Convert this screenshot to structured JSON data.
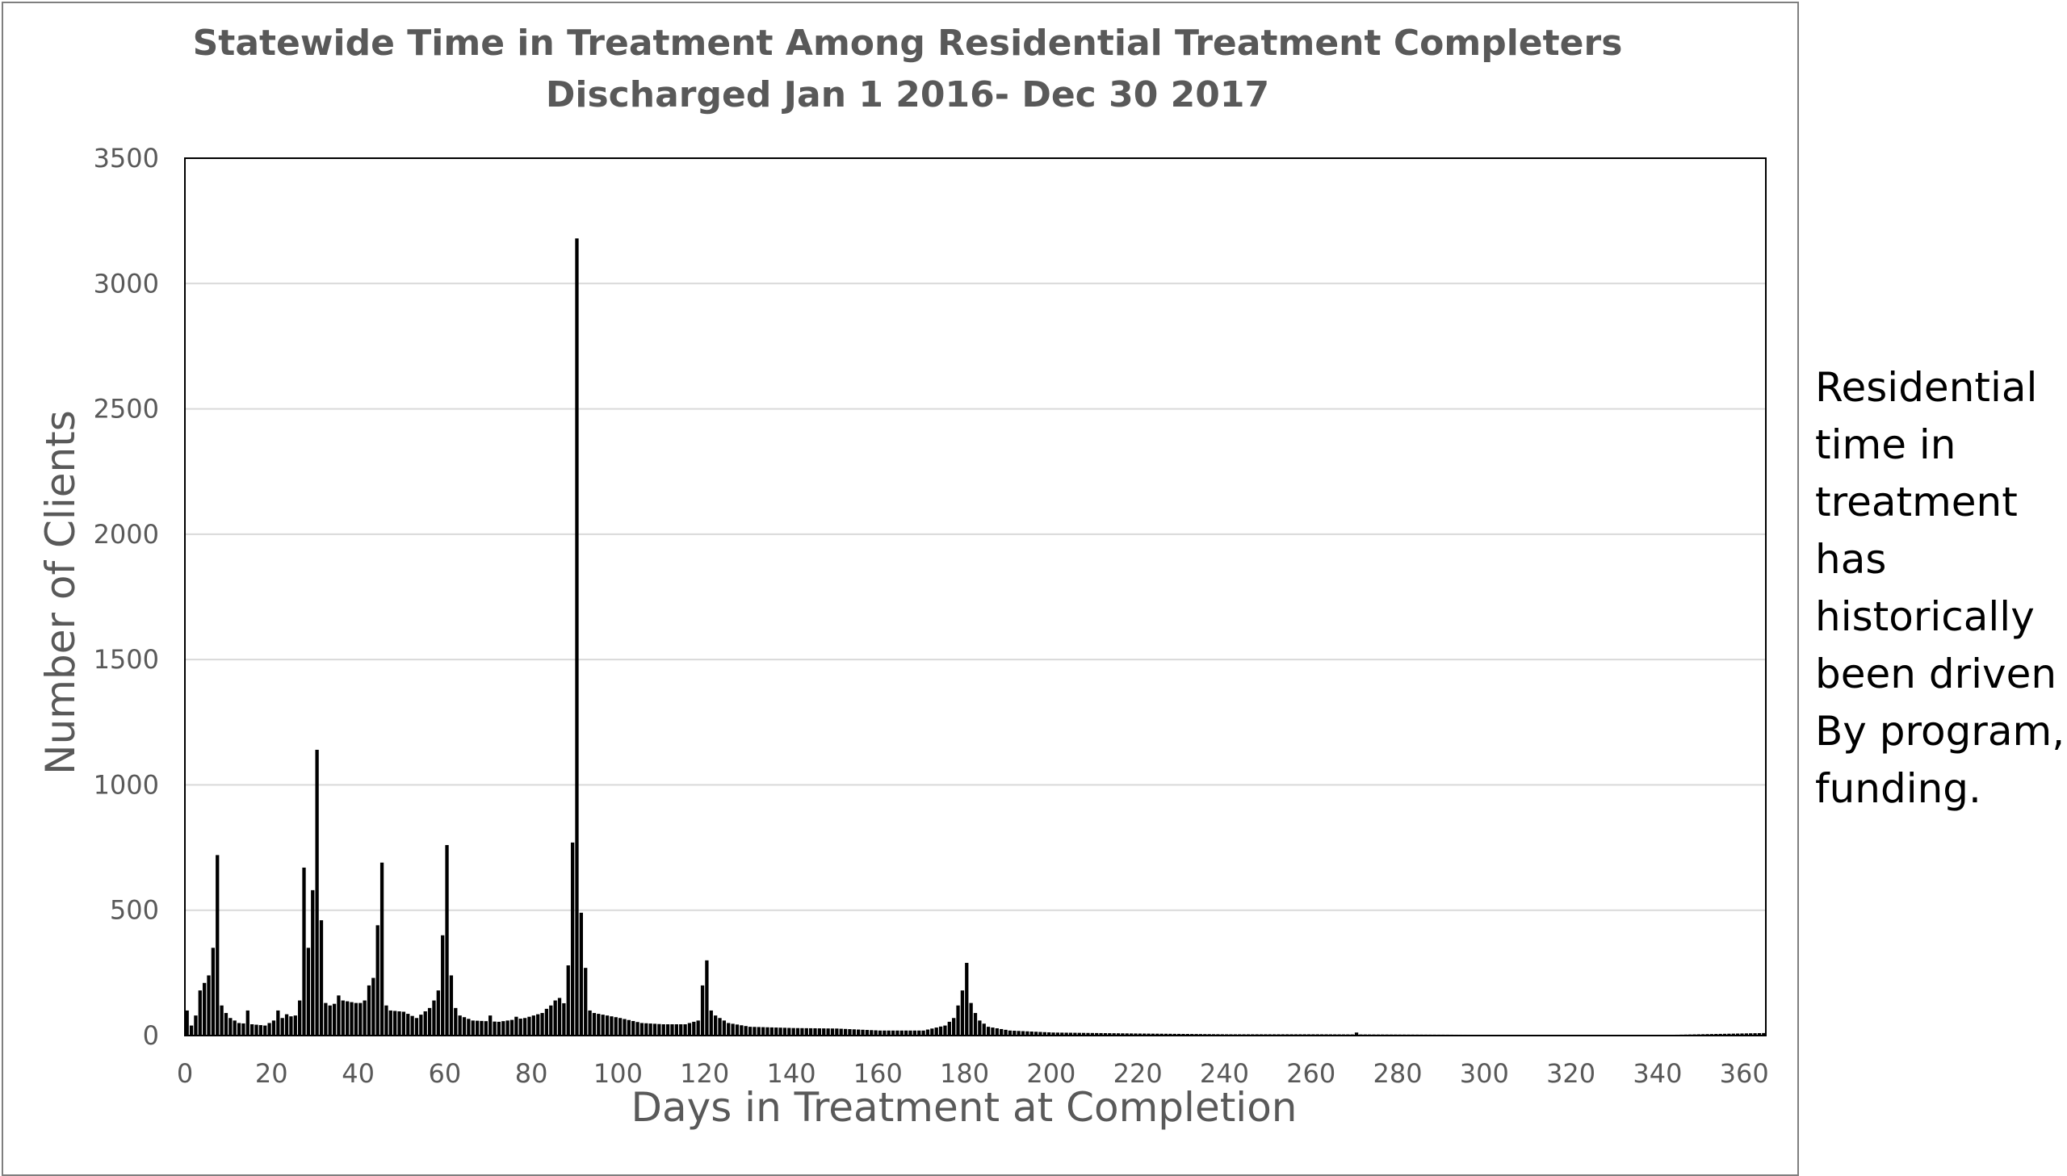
{
  "chart_data": {
    "type": "bar",
    "title": "Statewide Time in Treatment Among Residential Treatment Completers",
    "subtitle": "Discharged Jan 1 2016- Dec 30 2017",
    "xlabel": "Days in Treatment at Completion",
    "ylabel": "Number of Clients",
    "xlim": [
      0,
      365
    ],
    "ylim": [
      0,
      3500
    ],
    "x_ticks": [
      0,
      20,
      40,
      60,
      80,
      100,
      120,
      140,
      160,
      180,
      200,
      220,
      240,
      260,
      280,
      300,
      320,
      340,
      360
    ],
    "y_ticks": [
      0,
      500,
      1000,
      1500,
      2000,
      2500,
      3000,
      3500
    ],
    "grid": "horizontal",
    "legend": "none",
    "bar_color": "#000000",
    "grid_color": "#d9d9d9",
    "axis_color": "#000000",
    "text_color": "#595959",
    "spikes": [
      {
        "x": 0,
        "value": 100
      },
      {
        "x": 3,
        "value": 180
      },
      {
        "x": 4,
        "value": 210
      },
      {
        "x": 5,
        "value": 240
      },
      {
        "x": 6,
        "value": 350
      },
      {
        "x": 7,
        "value": 720
      },
      {
        "x": 8,
        "value": 120
      },
      {
        "x": 14,
        "value": 100
      },
      {
        "x": 21,
        "value": 100
      },
      {
        "x": 23,
        "value": 85
      },
      {
        "x": 26,
        "value": 140
      },
      {
        "x": 27,
        "value": 670
      },
      {
        "x": 28,
        "value": 350
      },
      {
        "x": 29,
        "value": 580
      },
      {
        "x": 30,
        "value": 1140
      },
      {
        "x": 31,
        "value": 460
      },
      {
        "x": 32,
        "value": 130
      },
      {
        "x": 35,
        "value": 160
      },
      {
        "x": 40,
        "value": 130
      },
      {
        "x": 42,
        "value": 200
      },
      {
        "x": 43,
        "value": 230
      },
      {
        "x": 44,
        "value": 440
      },
      {
        "x": 45,
        "value": 690
      },
      {
        "x": 46,
        "value": 120
      },
      {
        "x": 57,
        "value": 140
      },
      {
        "x": 58,
        "value": 180
      },
      {
        "x": 59,
        "value": 400
      },
      {
        "x": 60,
        "value": 760
      },
      {
        "x": 61,
        "value": 240
      },
      {
        "x": 62,
        "value": 110
      },
      {
        "x": 70,
        "value": 80
      },
      {
        "x": 76,
        "value": 75
      },
      {
        "x": 84,
        "value": 120
      },
      {
        "x": 86,
        "value": 150
      },
      {
        "x": 88,
        "value": 280
      },
      {
        "x": 89,
        "value": 770
      },
      {
        "x": 90,
        "value": 3180
      },
      {
        "x": 91,
        "value": 490
      },
      {
        "x": 92,
        "value": 270
      },
      {
        "x": 93,
        "value": 100
      },
      {
        "x": 119,
        "value": 200
      },
      {
        "x": 120,
        "value": 300
      },
      {
        "x": 121,
        "value": 100
      },
      {
        "x": 178,
        "value": 120
      },
      {
        "x": 179,
        "value": 180
      },
      {
        "x": 180,
        "value": 290
      },
      {
        "x": 181,
        "value": 130
      },
      {
        "x": 182,
        "value": 90
      },
      {
        "x": 270,
        "value": 12
      }
    ],
    "baseline": [
      [
        0,
        100
      ],
      [
        1,
        40
      ],
      [
        2,
        80
      ],
      [
        9,
        90
      ],
      [
        10,
        70
      ],
      [
        12,
        50
      ],
      [
        15,
        45
      ],
      [
        18,
        40
      ],
      [
        20,
        60
      ],
      [
        22,
        70
      ],
      [
        25,
        80
      ],
      [
        33,
        120
      ],
      [
        36,
        140
      ],
      [
        39,
        130
      ],
      [
        41,
        140
      ],
      [
        47,
        100
      ],
      [
        50,
        95
      ],
      [
        53,
        70
      ],
      [
        56,
        110
      ],
      [
        63,
        80
      ],
      [
        66,
        60
      ],
      [
        72,
        55
      ],
      [
        78,
        70
      ],
      [
        82,
        90
      ],
      [
        85,
        140
      ],
      [
        94,
        90
      ],
      [
        100,
        70
      ],
      [
        105,
        50
      ],
      [
        110,
        45
      ],
      [
        115,
        45
      ],
      [
        118,
        60
      ],
      [
        122,
        80
      ],
      [
        125,
        50
      ],
      [
        130,
        35
      ],
      [
        140,
        30
      ],
      [
        150,
        28
      ],
      [
        160,
        20
      ],
      [
        170,
        20
      ],
      [
        175,
        40
      ],
      [
        177,
        70
      ],
      [
        183,
        60
      ],
      [
        185,
        35
      ],
      [
        190,
        20
      ],
      [
        200,
        12
      ],
      [
        210,
        10
      ],
      [
        220,
        8
      ],
      [
        240,
        5
      ],
      [
        260,
        5
      ],
      [
        300,
        3
      ],
      [
        340,
        2
      ],
      [
        364,
        10
      ]
    ]
  },
  "side_note": {
    "lines": [
      "Residential",
      "time in",
      "treatment",
      "has",
      "historically",
      "been driven",
      "By program,",
      "funding."
    ]
  }
}
